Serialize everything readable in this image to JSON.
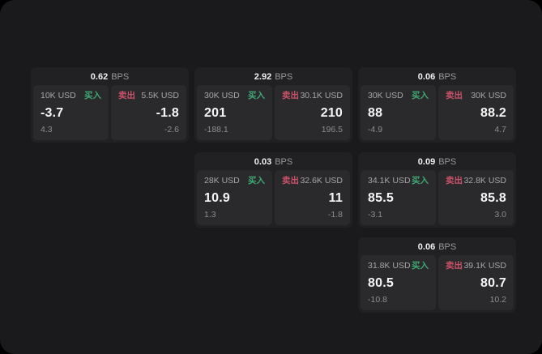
{
  "colors": {
    "buy": "#3fa873",
    "sell": "#c95168",
    "window_background": "#1a1a1c",
    "card_background": "#212123",
    "panel_background": "#2a2a2c"
  },
  "labels": {
    "buy_side": "买入",
    "sell_side": "卖出",
    "spread_unit": "BPS"
  },
  "cards": [
    {
      "spread_value": "0.62",
      "spread_unit": "BPS",
      "buy": {
        "amount": "10K USD",
        "side_label": "买入",
        "price": "-3.7",
        "delta": "4.3"
      },
      "sell": {
        "amount": "5.5K USD",
        "side_label": "卖出",
        "price": "-1.8",
        "delta": "-2.6"
      }
    },
    {
      "spread_value": "2.92",
      "spread_unit": "BPS",
      "buy": {
        "amount": "30K USD",
        "side_label": "买入",
        "price": "201",
        "delta": "-188.1"
      },
      "sell": {
        "amount": "30.1K USD",
        "side_label": "卖出",
        "price": "210",
        "delta": "196.5"
      }
    },
    {
      "spread_value": "0.06",
      "spread_unit": "BPS",
      "buy": {
        "amount": "30K USD",
        "side_label": "买入",
        "price": "88",
        "delta": "-4.9"
      },
      "sell": {
        "amount": "30K USD",
        "side_label": "卖出",
        "price": "88.2",
        "delta": "4.7"
      }
    },
    {
      "spread_value": "0.03",
      "spread_unit": "BPS",
      "buy": {
        "amount": "28K USD",
        "side_label": "买入",
        "price": "10.9",
        "delta": "1.3"
      },
      "sell": {
        "amount": "32.6K USD",
        "side_label": "卖出",
        "price": "11",
        "delta": "-1.8"
      }
    },
    {
      "spread_value": "0.09",
      "spread_unit": "BPS",
      "buy": {
        "amount": "34.1K USD",
        "side_label": "买入",
        "price": "85.5",
        "delta": "-3.1"
      },
      "sell": {
        "amount": "32.8K USD",
        "side_label": "卖出",
        "price": "85.8",
        "delta": "3.0"
      }
    },
    {
      "spread_value": "0.06",
      "spread_unit": "BPS",
      "buy": {
        "amount": "31.8K USD",
        "side_label": "买入",
        "price": "80.5",
        "delta": "-10.8"
      },
      "sell": {
        "amount": "39.1K USD",
        "side_label": "卖出",
        "price": "80.7",
        "delta": "10.2"
      }
    }
  ]
}
